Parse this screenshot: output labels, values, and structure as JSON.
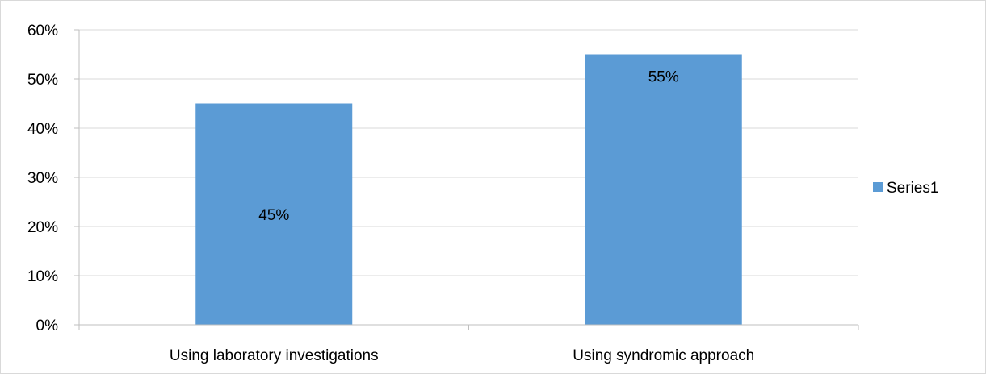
{
  "chart_data": {
    "type": "bar",
    "categories": [
      "Using laboratory investigations",
      "Using syndromic approach"
    ],
    "series": [
      {
        "name": "Series1",
        "values": [
          45,
          55
        ],
        "data_labels": [
          "45%",
          "55%"
        ],
        "color": "#5b9bd5"
      }
    ],
    "ylim": [
      0,
      60
    ],
    "y_ticks": [
      "0%",
      "10%",
      "20%",
      "30%",
      "40%",
      "50%",
      "60%"
    ],
    "grid": true,
    "legend_position": "right",
    "colors": {
      "gridline": "#d9d9d9",
      "axis": "#bfbfbf",
      "bar": "#5b9bd5"
    }
  }
}
